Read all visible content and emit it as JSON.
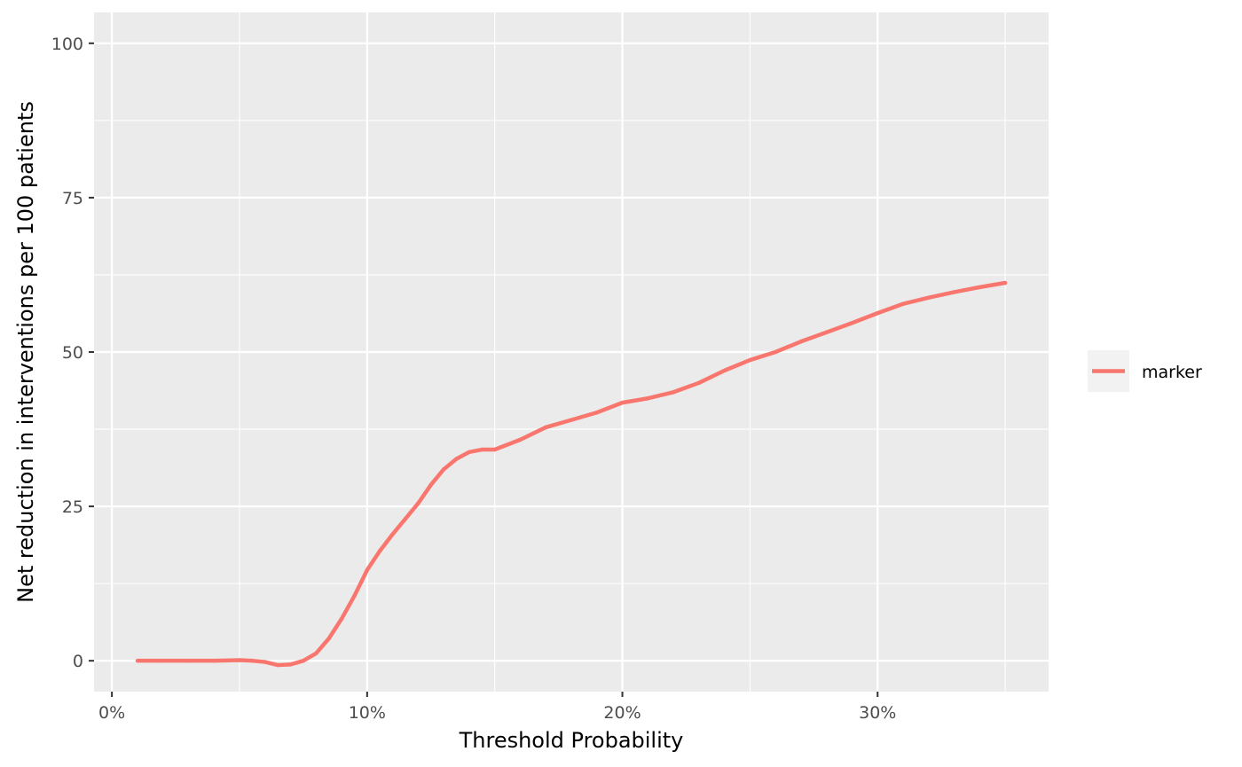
{
  "chart_data": {
    "type": "line",
    "title": "",
    "xlabel": "Threshold Probability",
    "ylabel": "Net reduction in interventions per 100 patients",
    "xlim": [
      -0.007,
      0.367
    ],
    "ylim": [
      -5,
      105
    ],
    "x_ticks": [
      0,
      0.1,
      0.2,
      0.3
    ],
    "x_tick_labels": [
      "0%",
      "10%",
      "20%",
      "30%"
    ],
    "y_ticks": [
      0,
      25,
      50,
      75,
      100
    ],
    "y_tick_labels": [
      "0",
      "25",
      "50",
      "75",
      "100"
    ],
    "grid": true,
    "legend": {
      "position": "right",
      "entries": [
        "marker"
      ]
    },
    "series": [
      {
        "name": "marker",
        "color": "#F8766D",
        "x": [
          0.01,
          0.02,
          0.03,
          0.04,
          0.05,
          0.055,
          0.06,
          0.065,
          0.07,
          0.075,
          0.08,
          0.085,
          0.09,
          0.095,
          0.1,
          0.105,
          0.11,
          0.115,
          0.12,
          0.125,
          0.13,
          0.135,
          0.14,
          0.145,
          0.15,
          0.16,
          0.17,
          0.18,
          0.19,
          0.2,
          0.21,
          0.22,
          0.23,
          0.24,
          0.25,
          0.26,
          0.27,
          0.28,
          0.29,
          0.3,
          0.31,
          0.32,
          0.33,
          0.34,
          0.35
        ],
        "values": [
          0,
          0,
          0,
          0,
          0.1,
          0,
          -0.2,
          -0.7,
          -0.6,
          0,
          1.2,
          3.6,
          6.8,
          10.5,
          14.7,
          17.8,
          20.5,
          23.0,
          25.5,
          28.5,
          31.0,
          32.7,
          33.8,
          34.2,
          34.2,
          35.8,
          37.8,
          39.0,
          40.2,
          41.8,
          42.5,
          43.5,
          45.0,
          47.0,
          48.7,
          50.0,
          51.7,
          53.2,
          54.7,
          56.3,
          57.8,
          58.8,
          59.7,
          60.5,
          61.2
        ]
      }
    ]
  }
}
